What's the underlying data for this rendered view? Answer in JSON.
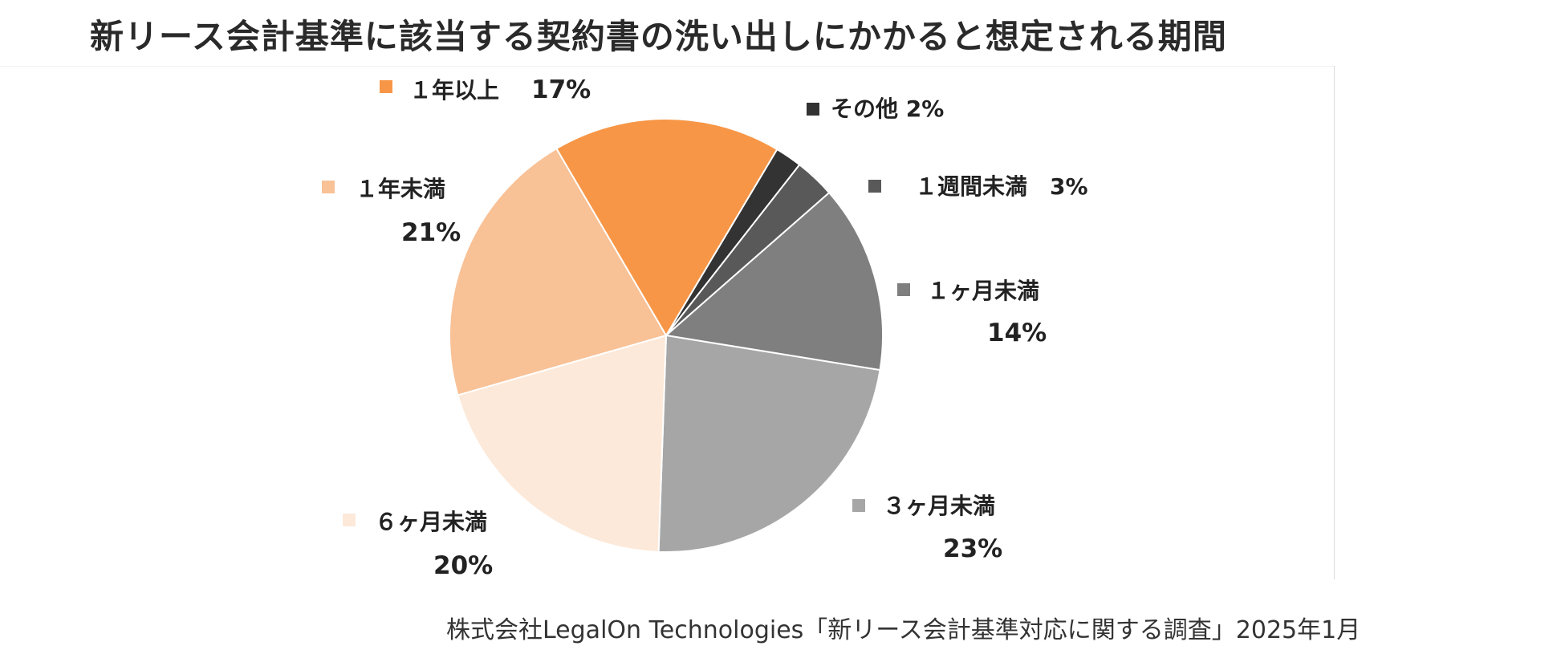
{
  "chart_data": {
    "type": "pie",
    "title": "新リース会計基準に該当する契約書の洗い出しにかかると想定される期間",
    "source": "株式会社LegalOn Technologies「新リース会計基準対応に関する調査」2025年1月",
    "slices": [
      {
        "label": "その他",
        "value": 2,
        "display": "2%",
        "color": "#333333"
      },
      {
        "label": "１週間未満",
        "value": 3,
        "display": "3%",
        "color": "#595959"
      },
      {
        "label": "１ヶ月未満",
        "value": 14,
        "display": "14%",
        "color": "#7f7f7f"
      },
      {
        "label": "３ヶ月未満",
        "value": 23,
        "display": "23%",
        "color": "#a6a6a6"
      },
      {
        "label": "６ヶ月未満",
        "value": 20,
        "display": "20%",
        "color": "#fde9d9"
      },
      {
        "label": "１年未満",
        "value": 21,
        "display": "21%",
        "color": "#f8c196"
      },
      {
        "label": "１年以上",
        "value": 17,
        "display": "17%",
        "color": "#f79646"
      }
    ]
  }
}
